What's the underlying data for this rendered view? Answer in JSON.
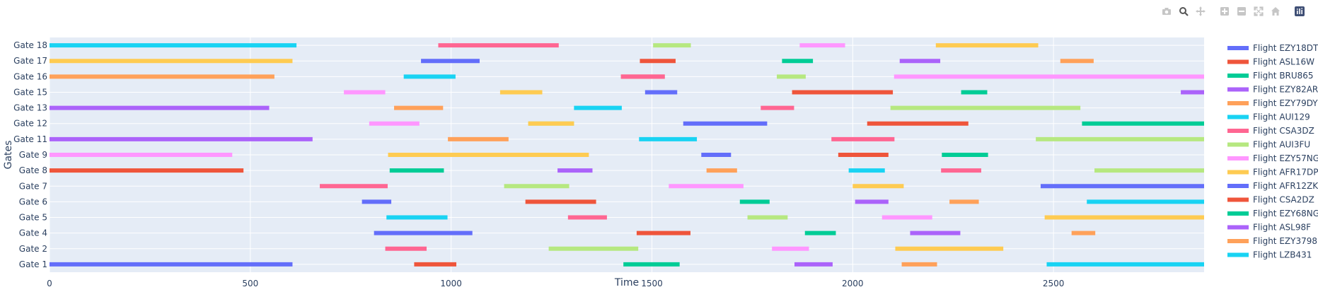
{
  "modebar": {
    "buttons": [
      "camera-icon",
      "zoom-icon",
      "pan-icon",
      "zoom-in-icon",
      "zoom-out-icon",
      "autoscale-icon",
      "reset-axes-icon",
      "plotly-logo-icon"
    ]
  },
  "chart_data": {
    "type": "bar",
    "orientation": "horizontal-timeline",
    "xlabel": "Time",
    "ylabel": "Gates",
    "xlim": [
      0,
      2875
    ],
    "xticks": [
      0,
      500,
      1000,
      1500,
      2000,
      2500
    ],
    "xtick_labels": [
      "0",
      "500",
      "1000",
      "1500",
      "2000",
      "2500"
    ],
    "categories": [
      "Gate 1",
      "Gate 2",
      "Gate 4",
      "Gate 5",
      "Gate 6",
      "Gate 7",
      "Gate 8",
      "Gate 9",
      "Gate 11",
      "Gate 12",
      "Gate 13",
      "Gate 15",
      "Gate 16",
      "Gate 17",
      "Gate 18"
    ],
    "grid": true,
    "legend_position": "right",
    "series": [
      {
        "name": "Flight EZY18DT",
        "color": "#636efa",
        "segments": [
          [
            "Gate 1",
            0,
            605
          ],
          [
            "Gate 4",
            808,
            1053
          ],
          [
            "Gate 6",
            778,
            851
          ],
          [
            "Gate 12",
            1578,
            1787
          ],
          [
            "Gate 17",
            925,
            1071
          ],
          [
            "Gate 7",
            2468,
            2875
          ]
        ]
      },
      {
        "name": "Flight ASL16W",
        "color": "#ef553b",
        "segments": [
          [
            "Gate 1",
            908,
            1013
          ],
          [
            "Gate 4",
            1462,
            1596
          ],
          [
            "Gate 6",
            1185,
            1361
          ],
          [
            "Gate 8",
            0,
            483
          ],
          [
            "Gate 9",
            1964,
            2089
          ],
          [
            "Gate 12",
            2036,
            2288
          ],
          [
            "Gate 15",
            1849,
            2100
          ],
          [
            "Gate 16",
            1423,
            1532
          ],
          [
            "Gate 17",
            1470,
            1559
          ]
        ]
      },
      {
        "name": "Flight BRU865",
        "color": "#00cc96",
        "segments": [
          [
            "Gate 1",
            1429,
            1569
          ],
          [
            "Gate 4",
            1881,
            1958
          ],
          [
            "Gate 6",
            1719,
            1793
          ],
          [
            "Gate 8",
            847,
            982
          ],
          [
            "Gate 9",
            2222,
            2337
          ],
          [
            "Gate 12",
            2571,
            2875
          ],
          [
            "Gate 15",
            2270,
            2335
          ],
          [
            "Gate 17",
            1824,
            1901
          ]
        ]
      },
      {
        "name": "Flight EZY82AR",
        "color": "#ab63fa",
        "segments": [
          [
            "Gate 1",
            1855,
            1950
          ],
          [
            "Gate 4",
            2143,
            2268
          ],
          [
            "Gate 6",
            2006,
            2089
          ],
          [
            "Gate 8",
            1265,
            1352
          ],
          [
            "Gate 11",
            0,
            655
          ],
          [
            "Gate 13",
            0,
            547
          ],
          [
            "Gate 15",
            2817,
            2875
          ],
          [
            "Gate 17",
            2117,
            2218
          ]
        ]
      },
      {
        "name": "Flight EZY79DY",
        "color": "#ffa15a",
        "segments": [
          [
            "Gate 1",
            2122,
            2210
          ],
          [
            "Gate 4",
            2545,
            2604
          ],
          [
            "Gate 6",
            2241,
            2314
          ],
          [
            "Gate 8",
            1636,
            1712
          ],
          [
            "Gate 11",
            992,
            1143
          ],
          [
            "Gate 13",
            858,
            980
          ],
          [
            "Gate 16",
            0,
            560
          ],
          [
            "Gate 17",
            2517,
            2600
          ]
        ]
      },
      {
        "name": "Flight AUI129",
        "color": "#19d3f3",
        "segments": [
          [
            "Gate 5",
            839,
            991
          ],
          [
            "Gate 6",
            2583,
            2875
          ],
          [
            "Gate 8",
            1990,
            2080
          ],
          [
            "Gate 11",
            1468,
            1612
          ],
          [
            "Gate 13",
            1306,
            1425
          ],
          [
            "Gate 16",
            882,
            1011
          ],
          [
            "Gate 18",
            0,
            615
          ],
          [
            "Gate 1",
            2483,
            2875
          ]
        ]
      },
      {
        "name": "Flight CSA3DZ",
        "color": "#ff6692",
        "segments": [
          [
            "Gate 2",
            836,
            939
          ],
          [
            "Gate 5",
            1291,
            1388
          ],
          [
            "Gate 7",
            673,
            842
          ],
          [
            "Gate 8",
            2220,
            2320
          ],
          [
            "Gate 11",
            1947,
            2104
          ],
          [
            "Gate 13",
            1771,
            1854
          ],
          [
            "Gate 16",
            1423,
            1532
          ],
          [
            "Gate 18",
            968,
            1268
          ]
        ]
      },
      {
        "name": "Flight AUI3FU",
        "color": "#b6e880",
        "segments": [
          [
            "Gate 2",
            1243,
            1466
          ],
          [
            "Gate 5",
            1738,
            1838
          ],
          [
            "Gate 7",
            1132,
            1294
          ],
          [
            "Gate 8",
            2602,
            2875
          ],
          [
            "Gate 11",
            2456,
            2875
          ],
          [
            "Gate 12",
            1192,
            1306
          ],
          [
            "Gate 13",
            2094,
            2567
          ],
          [
            "Gate 16",
            1811,
            1883
          ],
          [
            "Gate 18",
            1503,
            1597
          ]
        ]
      },
      {
        "name": "Flight EZY57NG",
        "color": "#ff97ff",
        "segments": [
          [
            "Gate 2",
            1799,
            1891
          ],
          [
            "Gate 5",
            2073,
            2198
          ],
          [
            "Gate 7",
            1542,
            1728
          ],
          [
            "Gate 9",
            0,
            455
          ],
          [
            "Gate 12",
            796,
            921
          ],
          [
            "Gate 15",
            733,
            836
          ],
          [
            "Gate 16",
            2103,
            2875
          ],
          [
            "Gate 18",
            1868,
            1981
          ]
        ]
      },
      {
        "name": "Flight AFR17DP",
        "color": "#fecb52",
        "segments": [
          [
            "Gate 2",
            2106,
            2375
          ],
          [
            "Gate 5",
            2478,
            2875
          ],
          [
            "Gate 7",
            2000,
            2127
          ],
          [
            "Gate 9",
            843,
            1343
          ],
          [
            "Gate 12",
            1192,
            1306
          ],
          [
            "Gate 15",
            1122,
            1227
          ],
          [
            "Gate 17",
            0,
            605
          ],
          [
            "Gate 18",
            2207,
            2462
          ]
        ]
      },
      {
        "name": "Flight AFR12ZK",
        "color": "#636efa",
        "segments": [
          [
            "Gate 9",
            1623,
            1697
          ],
          [
            "Gate 15",
            1483,
            1563
          ]
        ]
      },
      {
        "name": "Flight CSA2DZ",
        "color": "#ef553b",
        "segments": []
      },
      {
        "name": "Flight EZY68NG",
        "color": "#00cc96",
        "segments": []
      },
      {
        "name": "Flight ASL98F",
        "color": "#ab63fa",
        "segments": []
      },
      {
        "name": "Flight EZY3798",
        "color": "#ffa15a",
        "segments": []
      },
      {
        "name": "Flight LZB431",
        "color": "#19d3f3",
        "segments": []
      }
    ]
  }
}
